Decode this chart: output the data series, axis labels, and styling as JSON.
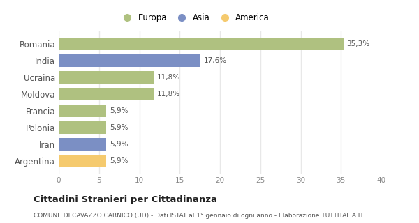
{
  "categories": [
    "Romania",
    "India",
    "Ucraina",
    "Moldova",
    "Francia",
    "Polonia",
    "Iran",
    "Argentina"
  ],
  "values": [
    35.3,
    17.6,
    11.8,
    11.8,
    5.9,
    5.9,
    5.9,
    5.9
  ],
  "labels": [
    "35,3%",
    "17,6%",
    "11,8%",
    "11,8%",
    "5,9%",
    "5,9%",
    "5,9%",
    "5,9%"
  ],
  "colors": [
    "#afc180",
    "#7b8fc4",
    "#afc180",
    "#afc180",
    "#afc180",
    "#afc180",
    "#7b8fc4",
    "#f5ca6e"
  ],
  "legend_labels": [
    "Europa",
    "Asia",
    "America"
  ],
  "legend_colors": [
    "#afc180",
    "#7b8fc4",
    "#f5ca6e"
  ],
  "xlim": [
    0,
    40
  ],
  "xticks": [
    0,
    5,
    10,
    15,
    20,
    25,
    30,
    35,
    40
  ],
  "title": "Cittadini Stranieri per Cittadinanza",
  "subtitle": "COMUNE DI CAVAZZO CARNICO (UD) - Dati ISTAT al 1° gennaio di ogni anno - Elaborazione TUTTITALIA.IT",
  "bg_color": "#ffffff",
  "grid_color": "#e8e8e8",
  "bar_height": 0.75
}
